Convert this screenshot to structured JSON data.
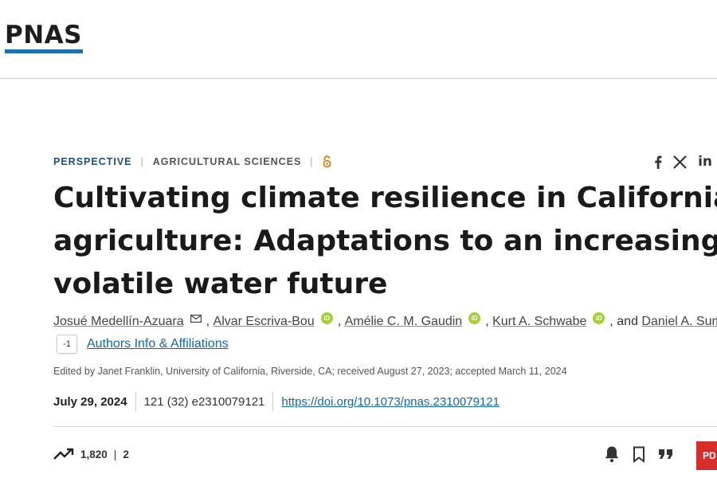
{
  "header": {
    "logo_text": "PNAS"
  },
  "article": {
    "type": "PERSPECTIVE",
    "subject": "AGRICULTURAL SCIENCES",
    "open_access_icon": "open-access-lock-icon",
    "title_lines": [
      "Cultivating climate resilience in California",
      "agriculture: Adaptations to an increasingly",
      "volatile water future"
    ],
    "authors": [
      {
        "name": "Josué Medellín-Azuara",
        "badge": "mail-icon"
      },
      {
        "name": "Alvar Escriva-Bou",
        "badge": "orcid-icon"
      },
      {
        "name": "Amélie C. M. Gaudin",
        "badge": "orcid-icon"
      },
      {
        "name": "Kurt A. Schwabe",
        "badge": "orcid-icon"
      },
      {
        "name": "Daniel A. Sumne",
        "badge": ""
      }
    ],
    "author_conjunction": ", and",
    "orcid_label": "iD",
    "aff_toggle": "-1",
    "aff_link": "Authors Info & Affiliations",
    "edited_by": "Edited by Janet Franklin, University of California, Riverside, CA; received August 27, 2023; accepted March 11, 2024",
    "pub_date": "July 29, 2024",
    "citation": "121 (32) e2310079121",
    "doi": "https://doi.org/10.1073/pnas.2310079121"
  },
  "share": {
    "icons": [
      "facebook-icon",
      "x-icon",
      "linkedin-icon"
    ],
    "linkedin_label": "in"
  },
  "metrics": {
    "views": "1,820",
    "citations": "2",
    "separator": "|"
  },
  "actions": {
    "pdf_label": "PD"
  },
  "colors": {
    "brand_blue": "#1f6fb5",
    "link": "#1565a8",
    "orcid": "#a6ce39",
    "pdf": "#d62c2c",
    "open_access": "#e07a10"
  }
}
